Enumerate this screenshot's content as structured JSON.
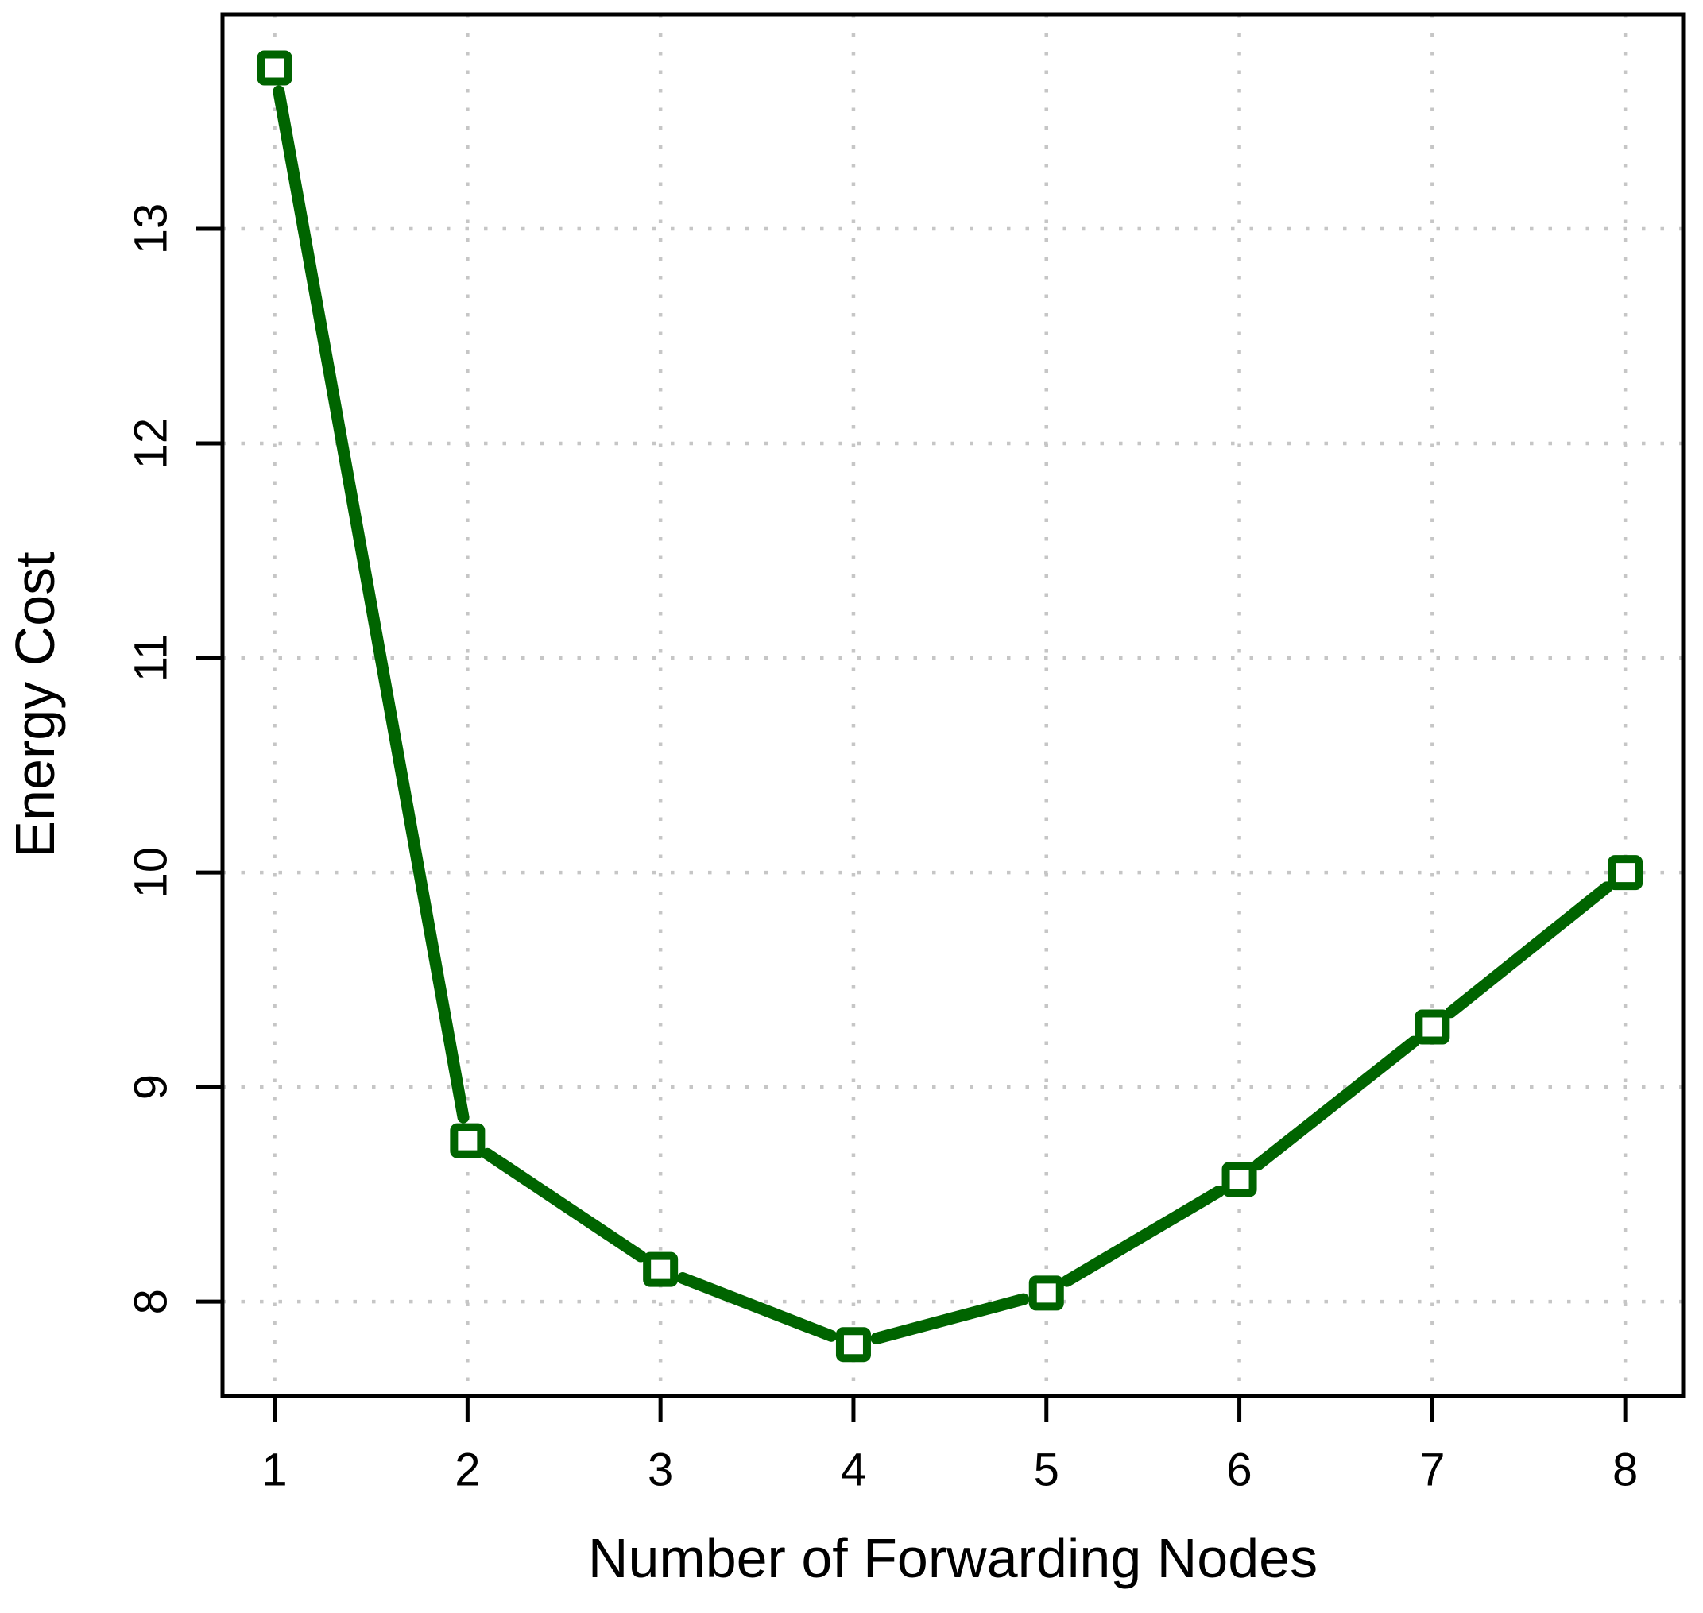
{
  "chart_data": {
    "type": "line",
    "title": "",
    "xlabel": "Number of Forwarding Nodes",
    "ylabel": "Energy Cost",
    "x": [
      1,
      2,
      3,
      4,
      5,
      6,
      7,
      8
    ],
    "series": [
      {
        "name": "Energy Cost",
        "values": [
          13.75,
          8.75,
          8.15,
          7.8,
          8.04,
          8.57,
          9.28,
          10.0
        ]
      }
    ],
    "xticks": [
      1,
      2,
      3,
      4,
      5,
      6,
      7,
      8
    ],
    "yticks": [
      8,
      9,
      10,
      11,
      12,
      13
    ],
    "xlim": [
      0.73,
      8.3
    ],
    "ylim": [
      7.56,
      14.0
    ],
    "grid": "dotted",
    "legend": "none",
    "marker": "open-square",
    "colors": {
      "line": "#006400",
      "marker_fill": "#ffffff",
      "grid": "#c6c6c6",
      "axis": "#000000",
      "background": "#ffffff"
    }
  }
}
